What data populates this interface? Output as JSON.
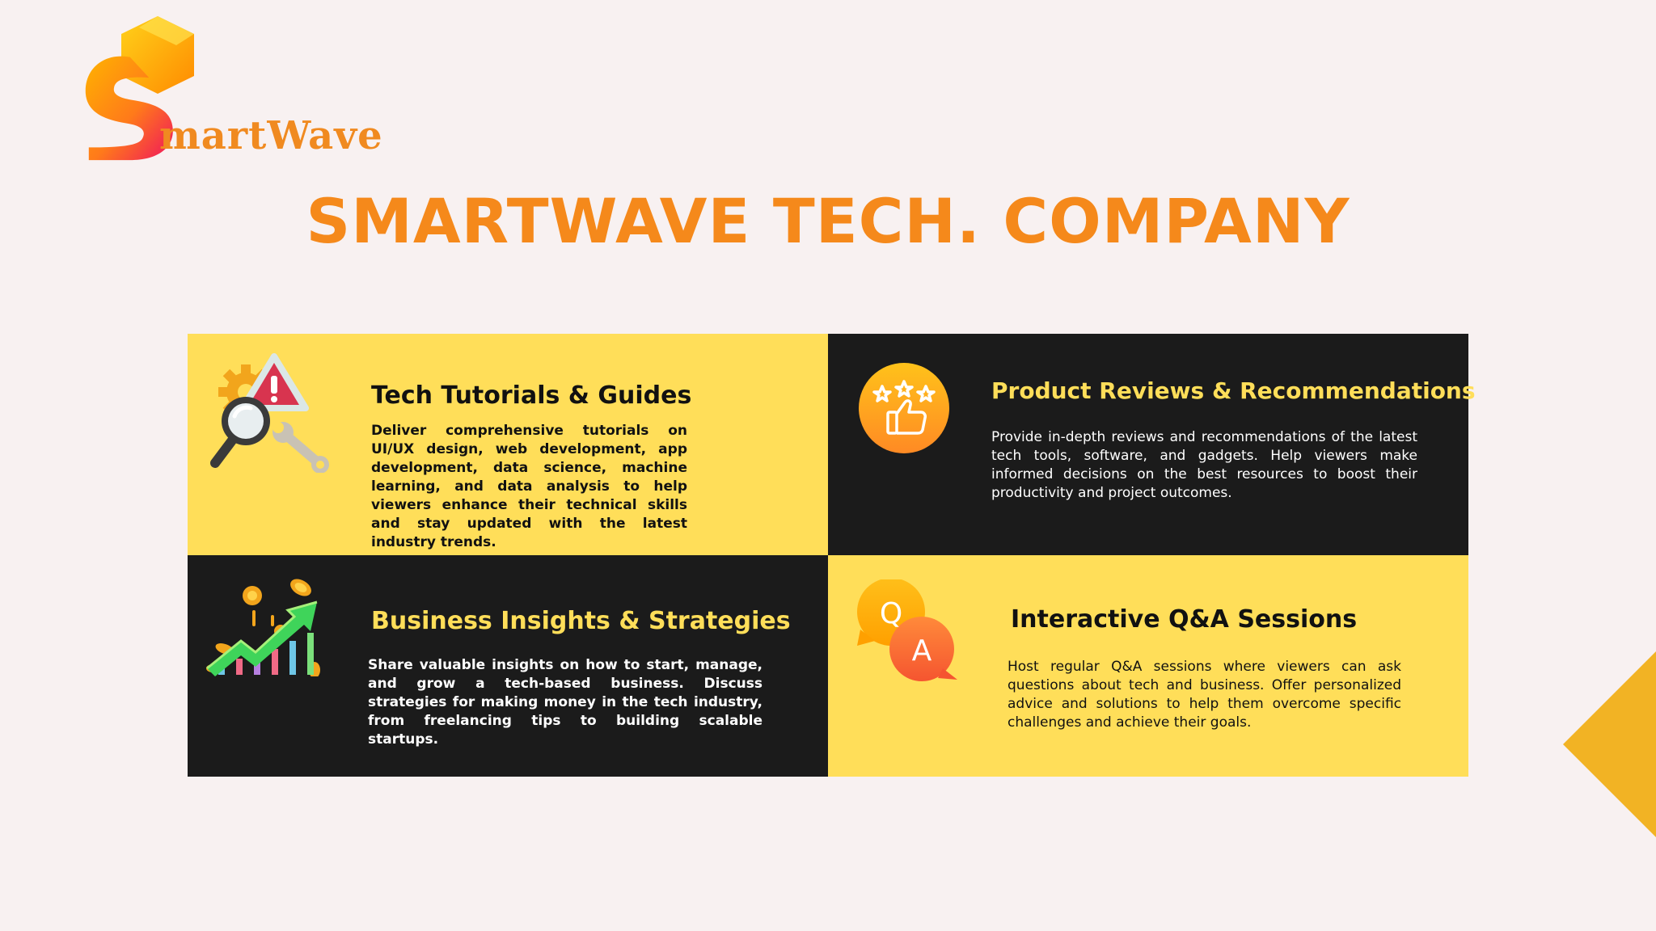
{
  "brand": {
    "logo_text": "martWave",
    "colors": {
      "orange": "#f5891b",
      "yellow": "#ffde59",
      "dark": "#1b1b1b",
      "background": "#f8f1f1",
      "corner": "#f2b324"
    }
  },
  "page": {
    "title": "SMARTWAVE TECH. COMPANY"
  },
  "cards": [
    {
      "icon": "magnifier-gear-wrench-icon",
      "title": "Tech Tutorials & Guides",
      "body": "Deliver comprehensive tutorials on UI/UX design, web development, app development, data science, machine learning, and data analysis to help viewers enhance their technical skills and stay updated with the latest industry trends."
    },
    {
      "icon": "thumbs-up-stars-icon",
      "title": "Product Reviews & Recommendations",
      "body": "Provide in-depth reviews and recommendations of the latest tech tools, software, and gadgets. Help viewers make informed decisions on the best resources to boost their productivity and project outcomes."
    },
    {
      "icon": "growth-chart-coins-icon",
      "title": "Business Insights & Strategies",
      "body": "Share valuable insights on how to start, manage, and grow a tech-based business. Discuss strategies for making money in the tech industry, from freelancing tips to building scalable startups."
    },
    {
      "icon": "qa-speech-bubbles-icon",
      "title": "Interactive Q&A Sessions",
      "body": "Host regular Q&A sessions where viewers can ask questions about tech and business. Offer personalized advice and solutions to help them overcome specific challenges and achieve their goals.",
      "q_letter": "Q",
      "a_letter": "A"
    }
  ]
}
